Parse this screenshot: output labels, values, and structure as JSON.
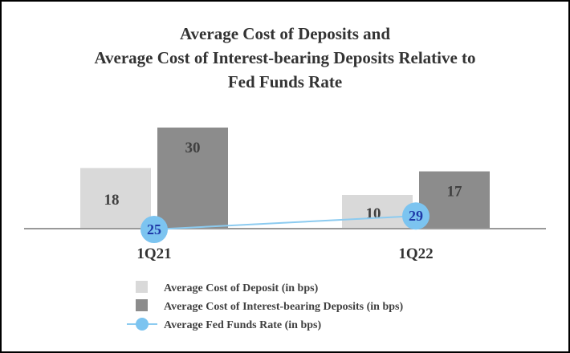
{
  "chart_data": {
    "type": "bar",
    "title_lines": [
      "Average Cost of Deposits and",
      "Average Cost of Interest-bearing Deposits Relative to",
      "Fed Funds Rate"
    ],
    "categories": [
      "1Q21",
      "1Q22"
    ],
    "series": [
      {
        "name": "Average Cost of Deposit (in bps)",
        "kind": "bar",
        "color": "#d9d9d9",
        "values": [
          18,
          10
        ]
      },
      {
        "name": "Average Cost of Interest-bearing Deposits (in bps)",
        "kind": "bar",
        "color": "#8c8c8c",
        "values": [
          30,
          17
        ]
      },
      {
        "name": "Average Fed Funds Rate (in bps)",
        "kind": "line",
        "color": "#7cc4f0",
        "line_color": "#8ccbf0",
        "values": [
          25,
          29
        ]
      }
    ],
    "ylim": [
      0,
      34
    ],
    "grid": false,
    "legend_position": "bottom"
  }
}
